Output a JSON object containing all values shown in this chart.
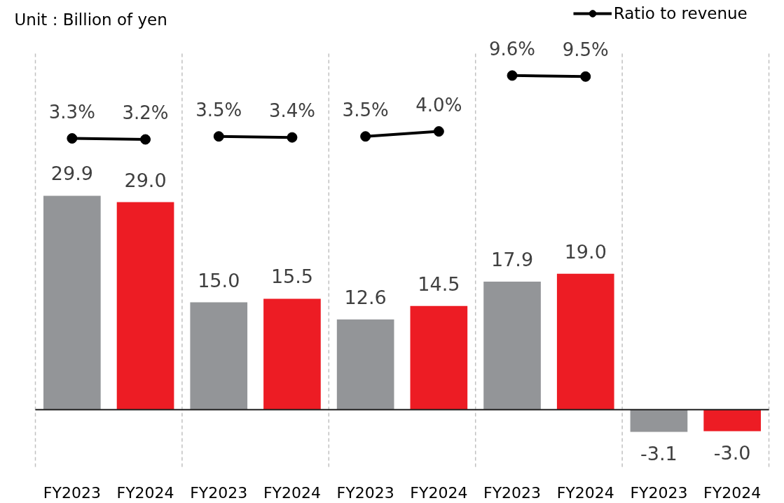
{
  "chart_data": {
    "type": "bar",
    "ylabel": "Unit : Billion of yen",
    "categories": [
      "FY2023",
      "FY2024",
      "FY2023",
      "FY2024",
      "FY2023",
      "FY2024",
      "FY2023",
      "FY2024",
      "FY2023",
      "FY2024"
    ],
    "ylim": [
      -8,
      50
    ],
    "tick_labels": "x",
    "grid": "x",
    "legend": "top right",
    "ref_lines": [
      {
        "axis": "y",
        "value": 0,
        "color": "#1f1f1f"
      }
    ],
    "series": [
      {
        "colors": [
          "#939598",
          "#ed1c24",
          "#939598",
          "#ed1c24",
          "#939598",
          "#ed1c24",
          "#939598",
          "#ed1c24",
          "#939598",
          "#ed1c24"
        ],
        "values": [
          29.9,
          29.0,
          15.0,
          15.5,
          12.6,
          14.5,
          17.9,
          19.0,
          -3.1,
          -3.0
        ],
        "value_labels": [
          "29.9",
          "29.0",
          "15.0",
          "15.5",
          "12.6",
          "14.5",
          "17.9",
          "19.0",
          "-3.1",
          "-3.0"
        ]
      },
      {
        "type": "line",
        "name": "Ratio to revenue",
        "color": "#000000",
        "axis": "y2",
        "marker": "circle",
        "line_style": "solid",
        "values": [
          3.3,
          3.2,
          null,
          null,
          null,
          null,
          null,
          null,
          null,
          null
        ],
        "value_labels": [
          "3.3%",
          "3.2%",
          null,
          null,
          null,
          null,
          null,
          null,
          null,
          null
        ]
      },
      {
        "type": "line",
        "color": "#000000",
        "axis": "y2",
        "marker": "circle",
        "line_style": "solid",
        "values": [
          null,
          null,
          3.5,
          3.4,
          null,
          null,
          null,
          null,
          null,
          null
        ],
        "value_labels": [
          null,
          null,
          "3.5%",
          "3.4%",
          null,
          null,
          null,
          null,
          null,
          null
        ]
      },
      {
        "type": "line",
        "color": "#000000",
        "axis": "y2",
        "marker": "circle",
        "line_style": "solid",
        "values": [
          null,
          null,
          null,
          null,
          3.5,
          4.0,
          null,
          null,
          null,
          null
        ],
        "value_labels": [
          null,
          null,
          null,
          null,
          "3.5%",
          "4.0%",
          null,
          null,
          null,
          null
        ]
      },
      {
        "type": "line",
        "color": "#000000",
        "axis": "y2",
        "marker": "circle",
        "line_style": "solid",
        "values": [
          null,
          null,
          null,
          null,
          null,
          null,
          9.6,
          9.5,
          null,
          null
        ],
        "value_labels": [
          null,
          null,
          null,
          null,
          null,
          null,
          "9.6%",
          "9.5%",
          null,
          null
        ]
      }
    ]
  }
}
